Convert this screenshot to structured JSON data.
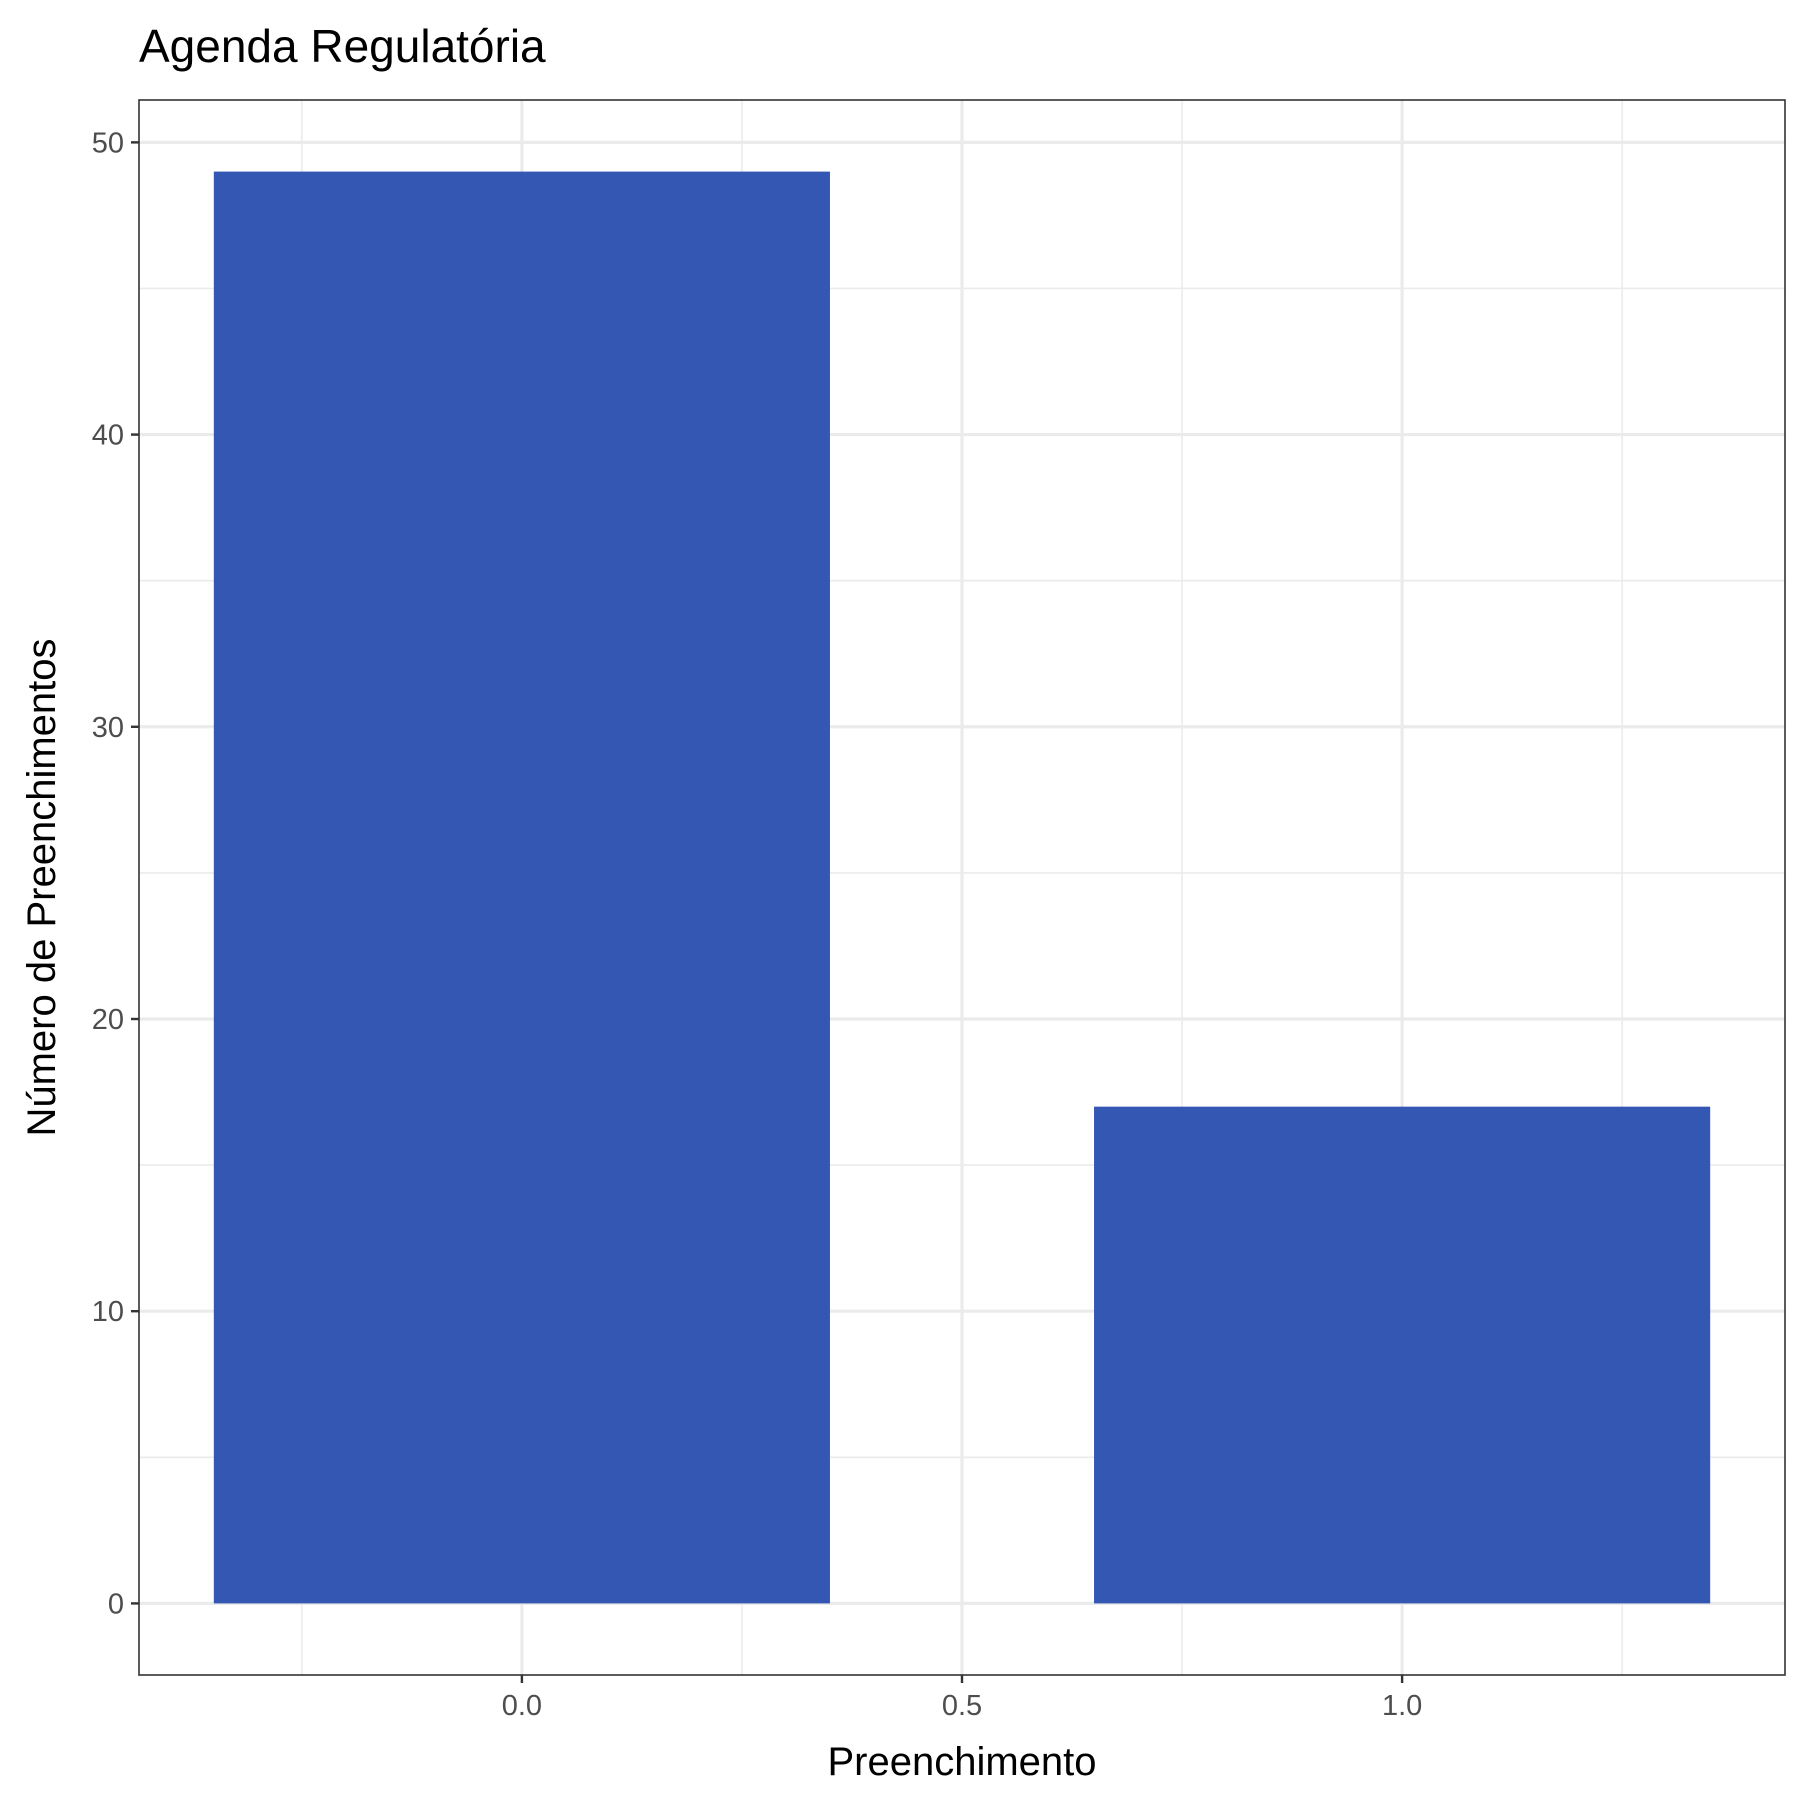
{
  "chart_data": {
    "type": "bar",
    "title": "Agenda Regulatória",
    "xlabel": "Preenchimento",
    "ylabel": "Número de Preenchimentos",
    "x": [
      0,
      1
    ],
    "values": [
      49,
      17
    ],
    "bar_width": 0.7,
    "xlim": [
      -0.435,
      1.435
    ],
    "ylim": [
      -2.45,
      51.45
    ],
    "x_ticks": [
      0,
      0.5,
      1
    ],
    "x_tick_labels": [
      "0.0",
      "0.5",
      "1.0"
    ],
    "x_minor_ticks": [
      -0.25,
      0.25,
      0.75,
      1.25
    ],
    "y_ticks": [
      0,
      10,
      20,
      30,
      40,
      50
    ],
    "y_tick_labels": [
      "0",
      "10",
      "20",
      "30",
      "40",
      "50"
    ],
    "y_minor_ticks": [
      5,
      15,
      25,
      35,
      45
    ],
    "grid": true,
    "legend": "none",
    "bar_color": "#3457B4"
  }
}
